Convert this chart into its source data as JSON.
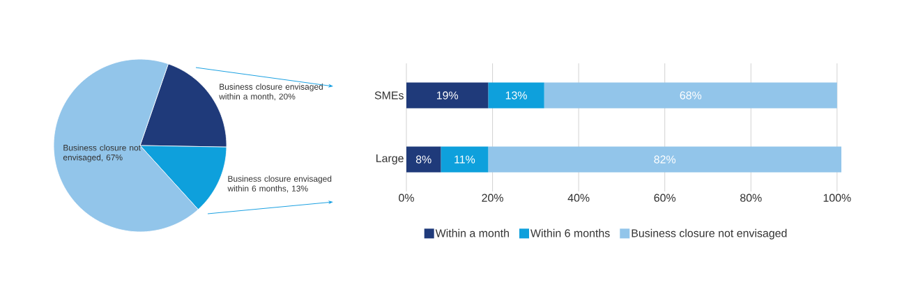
{
  "chart_data": [
    {
      "type": "pie",
      "categories": [
        "Business closure envisaged within a month, 20%",
        "Business closure envisaged within 6 months, 13%",
        "Business closure not envisaged, 67%"
      ],
      "values": [
        20,
        13,
        67
      ],
      "colors": [
        "#1f3a7a",
        "#0ea0dc",
        "#92c5ea"
      ]
    },
    {
      "type": "bar",
      "orientation": "horizontal",
      "stacked": true,
      "categories": [
        "SMEs",
        "Large"
      ],
      "series": [
        {
          "name": "Within a month",
          "color": "#1f3a7a",
          "values": [
            19,
            8
          ],
          "value_labels": [
            "19%",
            "8%"
          ]
        },
        {
          "name": "Within 6 months",
          "color": "#0ea0dc",
          "values": [
            13,
            11
          ],
          "value_labels": [
            "13%",
            "11%"
          ]
        },
        {
          "name": "Business closure not envisaged",
          "color": "#92c5ea",
          "values": [
            68,
            82
          ],
          "value_labels": [
            "68%",
            "82%"
          ]
        }
      ],
      "xlim": [
        0,
        101
      ],
      "xticks": [
        {
          "value": 0,
          "label": "0%"
        },
        {
          "value": 20,
          "label": "20%"
        },
        {
          "value": 40,
          "label": "40%"
        },
        {
          "value": 60,
          "label": "60%"
        },
        {
          "value": 80,
          "label": "80%"
        },
        {
          "value": 100,
          "label": "100%"
        }
      ],
      "grid": "x",
      "legend": "bottom"
    }
  ]
}
